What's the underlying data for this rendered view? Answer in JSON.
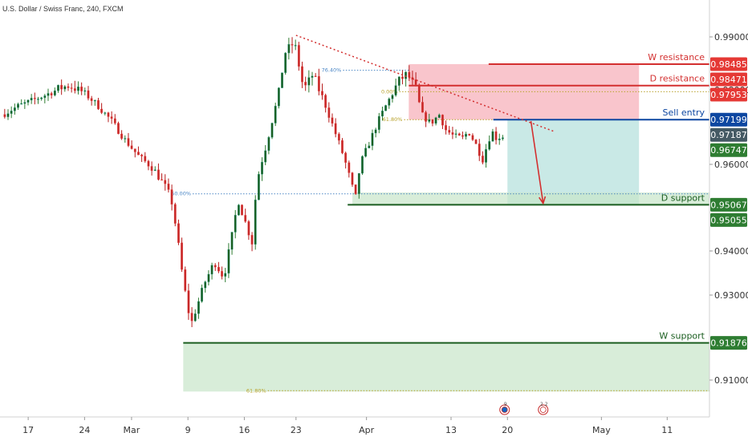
{
  "header": {
    "title": "U.S. Dollar / Swiss Franc, 240, FXCM"
  },
  "colors": {
    "up": "#26a69a",
    "down": "#ef5350",
    "bull_fill": "#1b5e20",
    "bear_fill": "#c62828",
    "red_line": "#d32f2f",
    "blue_line": "#0d47a1",
    "green_line": "#1b5e20",
    "red_zone": "#f8bbc3",
    "teal_zone": "#b2dfdb",
    "green_zone": "#c8e6c9",
    "dark_tag": "#455a64",
    "fib_gold": "#b8a12a",
    "fib_blue": "#4a86c5"
  },
  "chart_data": {
    "type": "candlestick",
    "ylim": [
      0.8995,
      0.9993
    ],
    "xlim": [
      0,
      75.5
    ],
    "price_ticks": [
      "0.99000",
      "0.98000",
      "0.96000",
      "0.94000",
      "0.93000",
      "0.91000"
    ],
    "price_tick_values": [
      0.99,
      0.98,
      0.96,
      0.94,
      0.93,
      0.91
    ],
    "x_ticks": [
      {
        "label": "17",
        "t": 3
      },
      {
        "label": "24",
        "t": 9
      },
      {
        "label": "Mar",
        "t": 14
      },
      {
        "label": "9",
        "t": 20
      },
      {
        "label": "16",
        "t": 26
      },
      {
        "label": "23",
        "t": 31.5
      },
      {
        "label": "Apr",
        "t": 39
      },
      {
        "label": "13",
        "t": 48
      },
      {
        "label": "20",
        "t": 54
      },
      {
        "label": "May",
        "t": 64
      },
      {
        "label": "11",
        "t": 71
      }
    ],
    "price_path": [
      [
        0.5,
        0.9734
      ],
      [
        2,
        0.9755
      ],
      [
        3.5,
        0.977
      ],
      [
        5,
        0.9786
      ],
      [
        6.5,
        0.9803
      ],
      [
        7.5,
        0.9808
      ],
      [
        9,
        0.9795
      ],
      [
        10.5,
        0.976
      ],
      [
        12,
        0.9718
      ],
      [
        13.5,
        0.9665
      ],
      [
        15,
        0.962
      ],
      [
        16.5,
        0.959
      ],
      [
        18,
        0.954
      ],
      [
        18.5,
        0.951
      ],
      [
        19,
        0.944
      ],
      [
        19.5,
        0.936
      ],
      [
        20,
        0.929
      ],
      [
        20.5,
        0.923
      ],
      [
        21,
        0.9265
      ],
      [
        22,
        0.933
      ],
      [
        23,
        0.9375
      ],
      [
        24,
        0.934
      ],
      [
        25,
        0.945
      ],
      [
        25.5,
        0.952
      ],
      [
        26,
        0.9485
      ],
      [
        27,
        0.942
      ],
      [
        27.5,
        0.956
      ],
      [
        28.5,
        0.965
      ],
      [
        29.5,
        0.9755
      ],
      [
        30.5,
        0.987
      ],
      [
        31.5,
        0.989
      ],
      [
        32.5,
        0.98
      ],
      [
        33.5,
        0.983
      ],
      [
        34.5,
        0.978
      ],
      [
        35.5,
        0.971
      ],
      [
        36.5,
        0.964
      ],
      [
        37.5,
        0.956
      ],
      [
        38,
        0.952
      ],
      [
        38.5,
        0.96
      ],
      [
        39.5,
        0.966
      ],
      [
        40.5,
        0.972
      ],
      [
        41.5,
        0.977
      ],
      [
        42.5,
        0.9815
      ],
      [
        43.5,
        0.983
      ],
      [
        44.5,
        0.98
      ],
      [
        45,
        0.9735
      ],
      [
        46,
        0.971
      ],
      [
        47,
        0.9735
      ],
      [
        47.5,
        0.9695
      ],
      [
        48.5,
        0.9675
      ],
      [
        49.5,
        0.967
      ],
      [
        50,
        0.969
      ],
      [
        51,
        0.9645
      ],
      [
        51.5,
        0.961
      ],
      [
        52.5,
        0.969
      ],
      [
        53,
        0.967
      ],
      [
        53.5,
        0.9675
      ]
    ],
    "candle_count": 150,
    "trendline": {
      "from": [
        31.5,
        0.9903
      ],
      "to": [
        59,
        0.9688
      ]
    },
    "projection_arrow": {
      "from": [
        56.5,
        0.9716
      ],
      "to": [
        57.8,
        0.951
      ]
    },
    "zones": [
      {
        "name": "w-resistance-zone",
        "x0": 43.5,
        "x1": 68,
        "y0": 0.98485,
        "y1": 0.97953,
        "color": "red"
      },
      {
        "name": "d-resistance-zone",
        "x0": 43.5,
        "x1": 68,
        "y0": 0.97953,
        "y1": 0.97199,
        "color": "red"
      },
      {
        "name": "target-zone",
        "x0": 54,
        "x1": 68,
        "y0": 0.97199,
        "y1": 0.95067,
        "color": "teal"
      },
      {
        "name": "d-support-zone",
        "x0": 37.5,
        "x1": 75.5,
        "y0": 0.9535,
        "y1": 0.95067,
        "color": "green"
      },
      {
        "name": "w-support-zone",
        "x0": 19.5,
        "x1": 75.5,
        "y0": 0.91876,
        "y1": 0.9073,
        "color": "green"
      }
    ],
    "levels": [
      {
        "name": "w-resistance-line",
        "label": "W resistance",
        "value": 0.98485,
        "x0": 52,
        "color": "red"
      },
      {
        "name": "d-resistance-line",
        "label": "D resistance",
        "value": 0.98471,
        "y": 0.9808,
        "x0": 43.5,
        "color": "red"
      },
      {
        "name": "sell-entry-line",
        "label": "Sell entry",
        "value": 0.97199,
        "x0": 52.5,
        "color": "blue"
      },
      {
        "name": "d-support-line",
        "label": "D support",
        "value": 0.95067,
        "x0": 37,
        "color": "green"
      },
      {
        "name": "w-support-line",
        "label": "W support",
        "value": 0.91876,
        "x0": 19.5,
        "color": "green"
      }
    ],
    "fib_lines": [
      {
        "label": "76.40%",
        "y": 0.9837,
        "x0": 36.5,
        "x1": 43.5,
        "color": "blue"
      },
      {
        "label": "0.00%",
        "y": 0.9795,
        "x0": 42.5,
        "x1": 75.5,
        "color": "gold"
      },
      {
        "label": "61.80%",
        "y": 0.972,
        "x0": 43,
        "x1": 52.5,
        "color": "gold"
      },
      {
        "label": "50.00%",
        "y": 0.9532,
        "x0": 20.5,
        "x1": 75.5,
        "color": "blue"
      },
      {
        "label": "61.80%",
        "y": 0.9075,
        "x0": 28.5,
        "x1": 75.5,
        "color": "gold"
      }
    ],
    "price_tags": [
      {
        "label": "0.98485",
        "y": 0.98485,
        "color": "red"
      },
      {
        "label": "0.98471",
        "y": 0.98471,
        "color": "red"
      },
      {
        "label": "0.97953",
        "y": 0.97953,
        "color": "red"
      },
      {
        "label": "0.97199",
        "y": 0.97199,
        "color": "blue"
      },
      {
        "label": "0.97187",
        "y": 0.97187,
        "color": "dark"
      },
      {
        "label": "0.96747",
        "y": 0.96747,
        "color": "green"
      },
      {
        "label": "0.95067",
        "y": 0.95067,
        "color": "green"
      },
      {
        "label": "0.95055",
        "y": 0.95055,
        "color": "green"
      },
      {
        "label": "0.91876",
        "y": 0.91876,
        "color": "green"
      }
    ],
    "event_icons": [
      {
        "name": "us-flag-event-icon",
        "t": 53.7,
        "badge": "9"
      },
      {
        "name": "dividend-event-icon",
        "t": 57.8,
        "badge": "2 2"
      }
    ]
  }
}
